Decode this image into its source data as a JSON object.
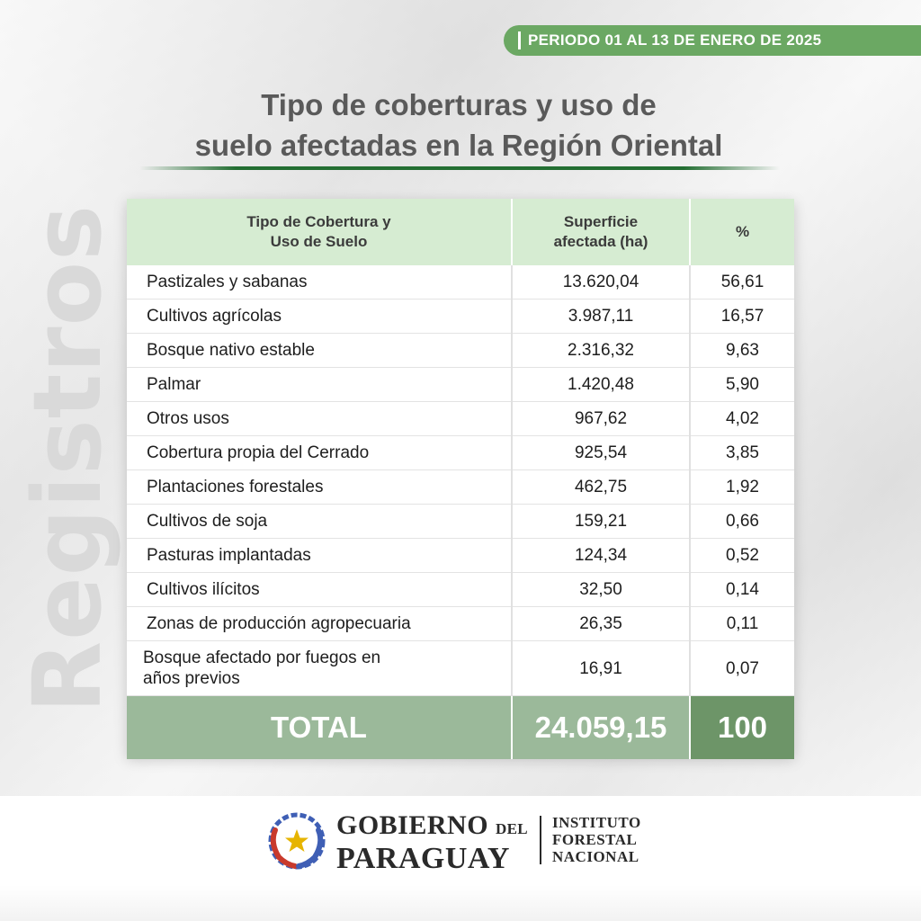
{
  "watermark": "Registros",
  "period": "PERIODO 01 AL 13 DE ENERO DE 2025",
  "title": {
    "line1": "Tipo de coberturas y uso de",
    "line2": "suelo afectadas en la Región Oriental"
  },
  "table": {
    "headers": {
      "col1_line1": "Tipo de Cobertura y",
      "col1_line2": "Uso de Suelo",
      "col2_line1": "Superficie",
      "col2_line2": "afectada (ha)",
      "col3": "%"
    },
    "rows": [
      {
        "name": "Pastizales y sabanas",
        "area": "13.620,04",
        "pct": "56,61"
      },
      {
        "name": "Cultivos agrícolas",
        "area": "3.987,11",
        "pct": "16,57"
      },
      {
        "name": "Bosque nativo estable",
        "area": "2.316,32",
        "pct": "9,63"
      },
      {
        "name": "Palmar",
        "area": "1.420,48",
        "pct": "5,90"
      },
      {
        "name": "Otros usos",
        "area": "967,62",
        "pct": "4,02"
      },
      {
        "name": "Cobertura propia del Cerrado",
        "area": "925,54",
        "pct": "3,85"
      },
      {
        "name": "Plantaciones forestales",
        "area": "462,75",
        "pct": "1,92"
      },
      {
        "name": "Cultivos de soja",
        "area": "159,21",
        "pct": "0,66"
      },
      {
        "name": "Pasturas implantadas",
        "area": "124,34",
        "pct": "0,52"
      },
      {
        "name": "Cultivos ilícitos",
        "area": "32,50",
        "pct": "0,14"
      },
      {
        "name": "Zonas de producción agropecuaria",
        "area": "26,35",
        "pct": "0,11"
      },
      {
        "name_line1": "Bosque afectado por fuegos en",
        "name_line2": "años previos",
        "area": "16,91",
        "pct": "0,07"
      }
    ],
    "total": {
      "label": "TOTAL",
      "area": "24.059,15",
      "pct": "100"
    }
  },
  "footer": {
    "gob_line1": "GOBIERNO",
    "gob_del": "DEL",
    "gob_line2": "PARAGUAY",
    "ifn_line1": "INSTITUTO",
    "ifn_line2": "FORESTAL",
    "ifn_line3": "NACIONAL"
  },
  "colors": {
    "accent_green": "#6ba863",
    "header_green": "#d6ecd2",
    "total_green": "#9bb99a",
    "total_dark_green": "#6d9568"
  }
}
